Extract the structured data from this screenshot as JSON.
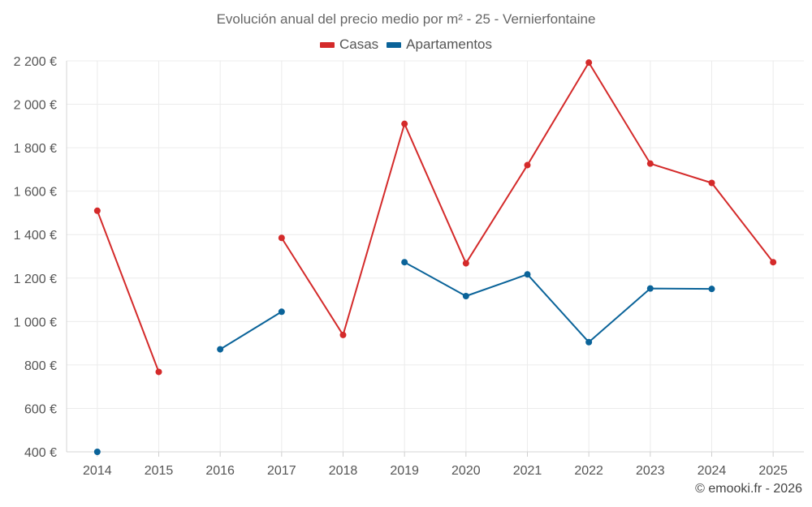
{
  "chart_data": {
    "type": "line",
    "title": "Evolución anual del precio medio por m² - 25 - Vernierfontaine",
    "categories": [
      "2014",
      "2015",
      "2016",
      "2017",
      "2018",
      "2019",
      "2020",
      "2021",
      "2022",
      "2023",
      "2024",
      "2025"
    ],
    "y_ticks": [
      400,
      600,
      800,
      1000,
      1200,
      1400,
      1600,
      1800,
      2000,
      2200
    ],
    "y_tick_labels": [
      "400 €",
      "600 €",
      "800 €",
      "1 000 €",
      "1 200 €",
      "1 400 €",
      "1 600 €",
      "1 800 €",
      "2 000 €",
      "2 200 €"
    ],
    "ylim": [
      400,
      2200
    ],
    "grid": true,
    "legend_position": "top-center",
    "series": [
      {
        "name": "Casas",
        "color": "#d42a2a",
        "values": [
          1510,
          768,
          null,
          1385,
          938,
          1910,
          1268,
          1720,
          2192,
          1727,
          1638,
          1273
        ]
      },
      {
        "name": "Apartamentos",
        "color": "#0a6399",
        "values": [
          400,
          null,
          872,
          1045,
          null,
          1273,
          1117,
          1217,
          905,
          1152,
          1150,
          null
        ]
      }
    ],
    "credit": "© emooki.fr - 2026"
  }
}
